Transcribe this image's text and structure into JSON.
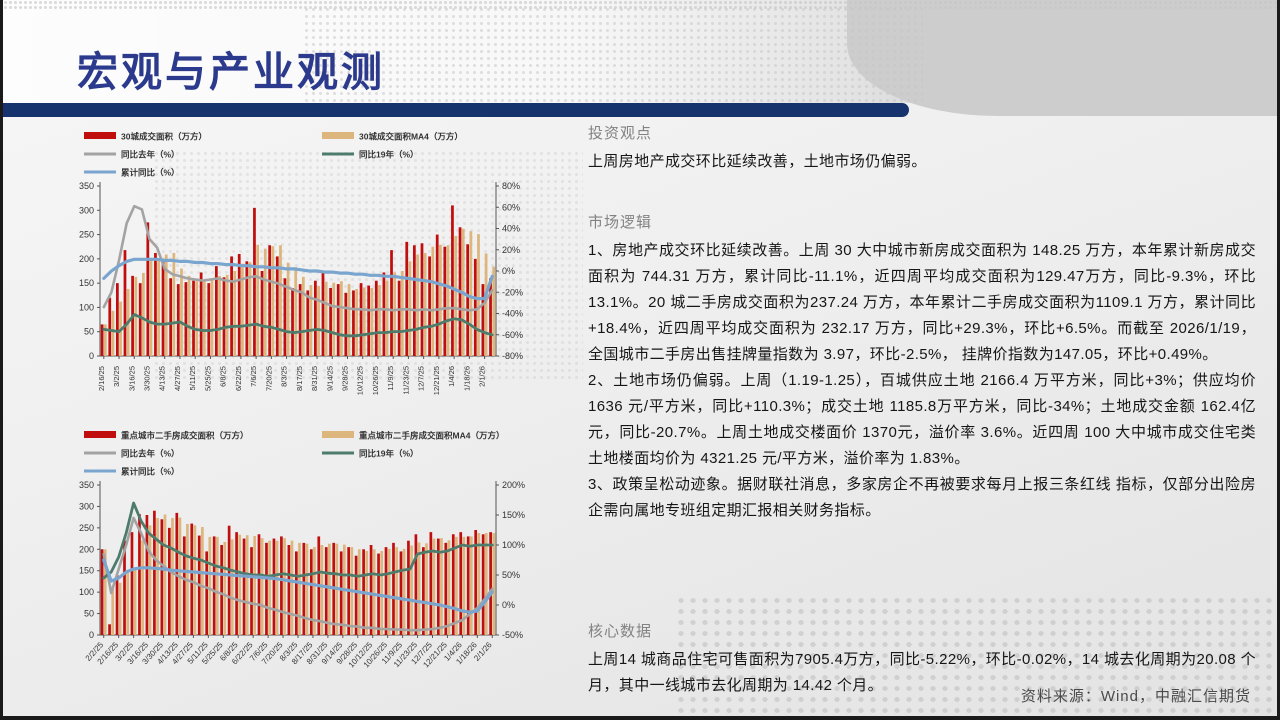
{
  "slide": {
    "title": "宏观与产业观测",
    "source": "资料来源：Wind，中融汇信期货"
  },
  "right_panel": {
    "sections": [
      {
        "heading": "投资观点",
        "paragraphs": [
          "上周房地产成交环比延续改善，土地市场仍偏弱。"
        ]
      },
      {
        "heading": "市场逻辑",
        "paragraphs": [
          "1、房地产成交环比延续改善。上周 30 大中城市新房成交面积为 148.25 万方，本年累计新房成交面积为 744.31 万方，累计同比-11.1%，近四周平均成交面积为129.47万方，同比-9.3%，环比13.1%。20 城二手房成交面积为237.24 万方，本年累计二手房成交面积为1109.1 万方，累计同比+18.4%，近四周平均成交面积为 232.17 万方，同比+29.3%，环比+6.5%。而截至 2026/1/19，全国城市二手房出售挂牌量指数为 3.97，环比-2.5%， 挂牌价指数为147.05，环比+0.49%。",
          "2、土地市场仍偏弱。上周（1.19-1.25），百城供应土地 2166.4 万平方米，同比+3%；供应均价 1636 元/平方米，同比+110.3%；成交土地 1185.8万平方米，同比-34%；土地成交金额 162.4亿元，同比-20.7%。上周土地成交楼面价 1370元，溢价率 3.6%。近四周 100 大中城市成交住宅类土地楼面均价为 4321.25 元/平方米，溢价率为 1.83%。",
          "3、政策呈松动迹象。据财联社消息，多家房企不再被要求每月上报三条红线 指标，仅部分出险房企需向属地专班组定期汇报相关财务指标。"
        ]
      },
      {
        "heading": "核心数据",
        "paragraphs": [
          "上周14 城商品住宅可售面积为7905.4万方，同比-5.22%，环比-0.02%，14 城去化周期为20.08 个月，其中一线城市去化周期为 14.42 个月。"
        ]
      }
    ]
  },
  "chart_data": [
    {
      "type": "bar",
      "title": "30城新房成交",
      "left_axis": {
        "min": 0,
        "max": 350,
        "step": 50,
        "suffix": ""
      },
      "right_axis": {
        "min": -80,
        "max": 80,
        "step": 20,
        "suffix": "%"
      },
      "grid": false,
      "legend_position": "top",
      "label_every": 2,
      "categories": [
        "2/16/25",
        "3/2/25",
        "3/16/25",
        "3/30/25",
        "4/13/25",
        "4/27/25",
        "5/11/25",
        "5/25/25",
        "6/8/25",
        "6/22/25",
        "7/6/25",
        "7/20/25",
        "8/3/25",
        "8/17/25",
        "8/31/25",
        "9/14/25",
        "9/28/25",
        "10/12/25",
        "10/26/25",
        "11/9/25",
        "11/23/25",
        "12/7/25",
        "12/21/25",
        "1/4/26",
        "1/18/26",
        "2/1/26"
      ],
      "legend": [
        {
          "label": "30城成交面积（万方）",
          "color": "#c00d0d",
          "kind": "bar",
          "col": 0,
          "row": 0
        },
        {
          "label": "30城成交面积MA4（万方）",
          "color": "#dcb67c",
          "kind": "bar",
          "col": 1,
          "row": 0
        },
        {
          "label": "同比去年（%）",
          "color": "#a3a3a3",
          "kind": "line",
          "col": 0,
          "row": 1
        },
        {
          "label": "同比19年（%）",
          "color": "#4d7c6c",
          "kind": "line",
          "col": 1,
          "row": 1
        },
        {
          "label": "累计同比（%）",
          "color": "#7aa5cf",
          "kind": "line",
          "col": 0,
          "row": 2
        }
      ],
      "bars": [
        {
          "name": "30城成交面积（万方）",
          "color": "#c00d0d",
          "values": [
            65,
            120,
            150,
            218,
            165,
            150,
            275,
            212,
            200,
            160,
            148,
            152,
            155,
            172,
            150,
            185,
            162,
            205,
            210,
            195,
            305,
            175,
            228,
            205,
            160,
            140,
            148,
            135,
            155,
            175,
            140,
            148,
            130,
            135,
            150,
            145,
            155,
            172,
            218,
            155,
            235,
            228,
            232,
            205,
            250,
            225,
            310,
            265,
            230,
            200,
            148,
            160
          ]
        },
        {
          "name": "30城成交面积MA4（万方）",
          "color": "#dcb67c",
          "values": [
            65,
            93,
            112,
            138,
            163,
            171,
            202,
            200,
            209,
            212,
            180,
            165,
            154,
            157,
            157,
            165,
            167,
            175,
            190,
            193,
            229,
            221,
            226,
            228,
            192,
            183,
            163,
            146,
            144,
            153,
            151,
            154,
            148,
            138,
            141,
            140,
            146,
            155,
            172,
            175,
            195,
            209,
            212,
            225,
            229,
            228,
            247,
            262,
            257,
            251,
            211,
            184
          ]
        }
      ],
      "series": [
        {
          "name": "同比去年（%）",
          "axis": "right",
          "color": "#a3a3a3",
          "width": 2.6,
          "values": [
            -34,
            -20,
            10,
            45,
            61,
            58,
            30,
            22,
            2,
            -3,
            -5,
            -7,
            -8,
            -9,
            -8,
            -7,
            -9,
            -10,
            -8,
            -6,
            -5,
            -8,
            -10,
            -12,
            -15,
            -18,
            -20,
            -25,
            -27,
            -30,
            -33,
            -34,
            -35,
            -36,
            -36,
            -37,
            -36,
            -36,
            -37,
            -36,
            -36,
            -37,
            -36,
            -37,
            -36,
            -35,
            -35,
            -36,
            -37,
            -36,
            -30,
            -18
          ]
        },
        {
          "name": "同比19年（%）",
          "axis": "right",
          "color": "#4d7c6c",
          "width": 2.8,
          "values": [
            -55,
            -56,
            -57,
            -50,
            -41,
            -44,
            -48,
            -50,
            -50,
            -49,
            -48,
            -52,
            -55,
            -56,
            -56,
            -55,
            -53,
            -52,
            -52,
            -51,
            -50,
            -52,
            -53,
            -55,
            -57,
            -58,
            -57,
            -56,
            -55,
            -56,
            -58,
            -60,
            -61,
            -61,
            -60,
            -59,
            -58,
            -58,
            -57,
            -57,
            -56,
            -55,
            -53,
            -52,
            -50,
            -47,
            -45,
            -46,
            -50,
            -55,
            -58,
            -60
          ]
        },
        {
          "name": "累计同比（%）",
          "axis": "right",
          "color": "#7aa5cf",
          "width": 3.2,
          "values": [
            -7,
            0,
            5,
            9,
            11,
            11,
            11,
            11,
            10,
            10,
            9,
            9,
            8,
            8,
            7,
            7,
            6,
            6,
            5,
            5,
            4,
            4,
            3,
            3,
            2,
            2,
            1,
            0,
            0,
            -1,
            -1,
            -2,
            -2,
            -3,
            -3,
            -4,
            -4,
            -5,
            -5,
            -6,
            -7,
            -8,
            -9,
            -10,
            -12,
            -14,
            -17,
            -20,
            -24,
            -26,
            -26,
            -5
          ]
        }
      ]
    },
    {
      "type": "bar",
      "title": "重点城市二手房成交",
      "left_axis": {
        "min": 0,
        "max": 350,
        "step": 50,
        "suffix": ""
      },
      "right_axis": {
        "min": -50,
        "max": 200,
        "step": 50,
        "suffix": "%"
      },
      "grid": false,
      "legend_position": "top",
      "label_every": 2,
      "categories": [
        "2/2/25",
        "2/16/25",
        "3/2/25",
        "3/16/25",
        "3/30/25",
        "4/13/25",
        "4/27/25",
        "5/11/25",
        "5/25/25",
        "6/8/25",
        "6/22/25",
        "7/6/25",
        "7/20/25",
        "8/3/25",
        "8/17/25",
        "8/31/25",
        "9/14/25",
        "9/28/25",
        "10/12/25",
        "10/26/25",
        "11/9/25",
        "11/23/25",
        "12/7/25",
        "12/21/25",
        "1/4/26",
        "1/18/26",
        "2/1/26"
      ],
      "legend": [
        {
          "label": "重点城市二手房成交面积（万方）",
          "color": "#c00d0d",
          "kind": "bar",
          "col": 0,
          "row": 0
        },
        {
          "label": "重点城市二手房成交面积MA4（万方）",
          "color": "#dcb67c",
          "kind": "bar",
          "col": 1,
          "row": 0
        },
        {
          "label": "同比去年（%）",
          "color": "#a3a3a3",
          "kind": "line",
          "col": 0,
          "row": 1
        },
        {
          "label": "同比19年（%）",
          "color": "#4d7c6c",
          "kind": "line",
          "col": 1,
          "row": 1
        },
        {
          "label": "累计同比（%）",
          "color": "#7aa5cf",
          "kind": "line",
          "col": 0,
          "row": 2
        }
      ],
      "bars": [
        {
          "name": "重点城市二手房成交面积（万方）",
          "color": "#c00d0d",
          "values": [
            200,
            25,
            140,
            220,
            240,
            282,
            280,
            290,
            270,
            250,
            285,
            230,
            260,
            232,
            195,
            230,
            210,
            255,
            240,
            225,
            205,
            235,
            215,
            225,
            230,
            210,
            195,
            215,
            200,
            230,
            205,
            215,
            195,
            205,
            185,
            200,
            210,
            190,
            205,
            215,
            195,
            220,
            235,
            205,
            240,
            225,
            215,
            235,
            240,
            230,
            245,
            235,
            240
          ]
        },
        {
          "name": "重点城市二手房成交面积MA4（万方）",
          "color": "#dcb67c",
          "values": [
            200,
            113,
            122,
            146,
            156,
            221,
            256,
            273,
            281,
            273,
            274,
            259,
            256,
            252,
            229,
            229,
            217,
            223,
            234,
            233,
            231,
            226,
            220,
            220,
            226,
            220,
            215,
            213,
            205,
            210,
            213,
            213,
            211,
            205,
            200,
            196,
            200,
            196,
            201,
            205,
            201,
            209,
            216,
            214,
            225,
            226,
            221,
            229,
            229,
            230,
            238,
            238,
            238
          ]
        }
      ],
      "series": [
        {
          "name": "同比去年（%）",
          "axis": "right",
          "color": "#a3a3a3",
          "width": 2.6,
          "values": [
            85,
            20,
            60,
            100,
            145,
            120,
            90,
            75,
            65,
            55,
            48,
            42,
            38,
            32,
            28,
            22,
            18,
            12,
            8,
            5,
            2,
            0,
            -5,
            -8,
            -12,
            -15,
            -18,
            -22,
            -25,
            -27,
            -30,
            -32,
            -33,
            -35,
            -36,
            -38,
            -38,
            -40,
            -40,
            -41,
            -41,
            -42,
            -42,
            -41,
            -40,
            -38,
            -35,
            -30,
            -25,
            -15,
            -5,
            10,
            27
          ]
        },
        {
          "name": "同比19年（%）",
          "axis": "right",
          "color": "#4d7c6c",
          "width": 2.8,
          "values": [
            45,
            55,
            80,
            120,
            170,
            140,
            120,
            110,
            100,
            95,
            88,
            82,
            78,
            75,
            70,
            65,
            62,
            58,
            55,
            52,
            50,
            50,
            48,
            50,
            52,
            50,
            48,
            50,
            52,
            55,
            53,
            52,
            50,
            50,
            48,
            50,
            52,
            50,
            52,
            55,
            58,
            60,
            85,
            88,
            90,
            88,
            90,
            95,
            100,
            98,
            100,
            100,
            100
          ]
        },
        {
          "name": "累计同比（%）",
          "axis": "right",
          "color": "#7aa5cf",
          "width": 3.2,
          "values": [
            75,
            40,
            45,
            55,
            60,
            62,
            62,
            61,
            60,
            58,
            57,
            56,
            55,
            54,
            53,
            52,
            51,
            50,
            49,
            48,
            47,
            46,
            45,
            44,
            42,
            40,
            38,
            36,
            34,
            32,
            30,
            28,
            26,
            24,
            22,
            20,
            18,
            16,
            14,
            12,
            10,
            8,
            6,
            4,
            2,
            0,
            -3,
            -6,
            -10,
            -12,
            -10,
            5,
            22
          ]
        }
      ]
    }
  ]
}
